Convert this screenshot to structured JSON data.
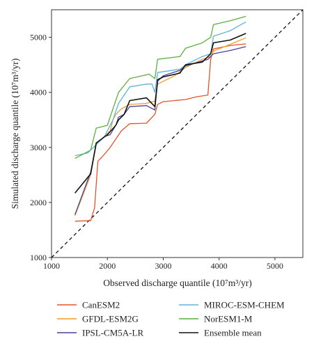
{
  "chart_data": {
    "type": "line",
    "xlabel": "Observed discharge quantile (10⁷m³/yr)",
    "ylabel": "Simulated discharge quantile (10⁷m³/yr)",
    "xlim": [
      1000,
      5500
    ],
    "ylim": [
      1000,
      5500
    ],
    "x_ticks": [
      "1000",
      "2000",
      "3000",
      "4000",
      "5000"
    ],
    "y_ticks": [
      "1000",
      "2000",
      "3000",
      "4000",
      "5000"
    ],
    "legend_position": "bottom",
    "reference_line": "1:1 dashed",
    "series": [
      {
        "name": "CanESM2",
        "color": "#e2552a",
        "x": [
          1420,
          1700,
          1770,
          1830,
          1900,
          2050,
          2150,
          2250,
          2400,
          2700,
          2850,
          2900,
          3000,
          3200,
          3400,
          3600,
          3800,
          3850,
          3900,
          4200,
          4480
        ],
        "y": [
          1660,
          1670,
          1900,
          2750,
          2820,
          3000,
          3150,
          3300,
          3430,
          3440,
          3600,
          3780,
          3830,
          3850,
          3870,
          3920,
          3950,
          4600,
          4790,
          4850,
          4880
        ]
      },
      {
        "name": "GFDL-ESM2G",
        "color": "#f29a2e",
        "x": [
          1420,
          1700,
          1800,
          1900,
          2050,
          2100,
          2150,
          2250,
          2400,
          2700,
          2850,
          2900,
          3000,
          3200,
          3400,
          3700,
          3850,
          3900,
          4100,
          4480
        ],
        "y": [
          1760,
          2500,
          3050,
          3150,
          3300,
          3500,
          3600,
          3700,
          3780,
          3800,
          3840,
          4150,
          4200,
          4300,
          4450,
          4600,
          4650,
          4750,
          4830,
          4990
        ]
      },
      {
        "name": "IPSL-CM5A-LR",
        "color": "#4a3f9e",
        "x": [
          1420,
          1700,
          1800,
          1950,
          2050,
          2150,
          2200,
          2300,
          2400,
          2700,
          2850,
          2900,
          3000,
          3300,
          3400,
          3800,
          3850,
          3900,
          4200,
          4480
        ],
        "y": [
          1780,
          2550,
          3060,
          3200,
          3230,
          3400,
          3550,
          3600,
          3740,
          3760,
          3680,
          4200,
          4300,
          4400,
          4480,
          4600,
          4650,
          4700,
          4760,
          4830
        ]
      },
      {
        "name": "MIROC-ESM-CHEM",
        "color": "#5db3d9",
        "x": [
          1420,
          1650,
          1800,
          1950,
          2100,
          2200,
          2400,
          2700,
          2800,
          2850,
          2900,
          3300,
          3400,
          3700,
          3850,
          3900,
          4200,
          4480
        ],
        "y": [
          2850,
          2900,
          3050,
          3200,
          3500,
          3800,
          4100,
          4150,
          4150,
          4000,
          4360,
          4420,
          4500,
          4650,
          4700,
          5020,
          5120,
          5280
        ]
      },
      {
        "name": "NorESM1-M",
        "color": "#5caf3e",
        "x": [
          1420,
          1700,
          1800,
          2000,
          2100,
          2200,
          2400,
          2750,
          2850,
          2900,
          3300,
          3400,
          3700,
          3850,
          3900,
          4200,
          4480
        ],
        "y": [
          2800,
          2950,
          3350,
          3400,
          3700,
          4000,
          4250,
          4330,
          4250,
          4600,
          4650,
          4800,
          4900,
          5000,
          5230,
          5300,
          5380
        ]
      },
      {
        "name": "Ensemble mean",
        "color": "#111111",
        "x": [
          1420,
          1700,
          1800,
          2000,
          2150,
          2200,
          2300,
          2400,
          2700,
          2850,
          2900,
          3000,
          3300,
          3400,
          3700,
          3850,
          3900,
          4200,
          4480
        ],
        "y": [
          2170,
          2520,
          3080,
          3230,
          3400,
          3500,
          3600,
          3850,
          3900,
          3740,
          4230,
          4280,
          4350,
          4500,
          4550,
          4700,
          4900,
          4950,
          5070
        ]
      }
    ]
  }
}
